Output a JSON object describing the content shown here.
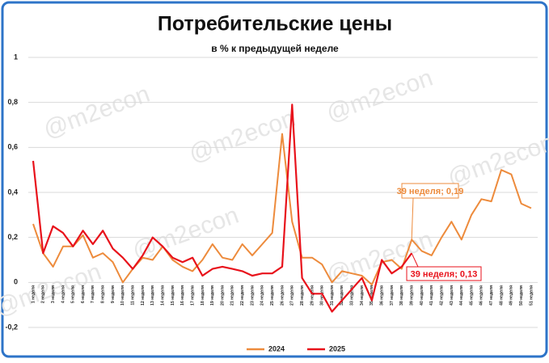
{
  "chart_data": {
    "type": "line",
    "title": "Потребительские цены",
    "subtitle": "в % к предыдущей неделе",
    "watermark": "@m2econ",
    "categories": [
      "1 неделя",
      "2 неделя",
      "3 неделя",
      "4 неделя",
      "5 неделя",
      "6 неделя",
      "7 неделя",
      "8 неделя",
      "9 неделя",
      "10 неделя",
      "11 неделя",
      "12 неделя",
      "13 неделя",
      "14 неделя",
      "15 неделя",
      "16 неделя",
      "17 неделя",
      "18 неделя",
      "19 неделя",
      "20 неделя",
      "21 неделя",
      "22 неделя",
      "23 неделя",
      "24 неделя",
      "25 неделя",
      "26 неделя",
      "27 неделя",
      "28 неделя",
      "29 неделя",
      "30 неделя",
      "31 неделя",
      "32 неделя",
      "33 неделя",
      "34 неделя",
      "35 неделя",
      "36 неделя",
      "37 неделя",
      "38 неделя",
      "39 неделя",
      "40 неделя",
      "41 неделя",
      "42 неделя",
      "43 неделя",
      "44 неделя",
      "45 неделя",
      "46 неделя",
      "47 неделя",
      "48 неделя",
      "49 неделя",
      "50 неделя",
      "51 неделя"
    ],
    "series": [
      {
        "name": "2024",
        "color": "#ed8b3c",
        "values": [
          0.26,
          0.13,
          0.07,
          0.16,
          0.16,
          0.21,
          0.11,
          0.13,
          0.09,
          0.0,
          0.06,
          0.11,
          0.1,
          0.16,
          0.1,
          0.07,
          0.05,
          0.1,
          0.17,
          0.11,
          0.1,
          0.17,
          0.12,
          0.17,
          0.22,
          0.66,
          0.27,
          0.11,
          0.11,
          0.08,
          0.0,
          0.05,
          0.04,
          0.03,
          -0.01,
          0.09,
          0.1,
          0.06,
          0.19,
          0.14,
          0.12,
          0.2,
          0.27,
          0.19,
          0.3,
          0.37,
          0.36,
          0.5,
          0.48,
          0.35,
          0.33
        ]
      },
      {
        "name": "2025",
        "color": "#e8121b",
        "values": [
          0.54,
          0.13,
          0.25,
          0.22,
          0.16,
          0.23,
          0.17,
          0.23,
          0.15,
          0.11,
          0.06,
          0.12,
          0.2,
          0.16,
          0.11,
          0.09,
          0.11,
          0.03,
          0.06,
          0.07,
          0.06,
          0.05,
          0.03,
          0.04,
          0.04,
          0.07,
          0.79,
          0.02,
          -0.05,
          -0.05,
          -0.13,
          -0.08,
          -0.03,
          0.02,
          -0.08,
          0.1,
          0.04,
          0.07,
          0.13,
          null,
          null,
          null,
          null,
          null,
          null,
          null,
          null,
          null,
          null,
          null,
          null
        ]
      }
    ],
    "annotations": [
      "39 неделя; 0,19",
      "39 неделя; 0,13"
    ],
    "ylim": [
      -0.2,
      1
    ],
    "yticks": [
      {
        "value": -0.2,
        "label": "-0,2"
      },
      0,
      {
        "value": 0.2,
        "label": "0,2"
      },
      {
        "value": 0.4,
        "label": "0,4"
      },
      {
        "value": 0.6,
        "label": "0,6"
      },
      {
        "value": 0.8,
        "label": "0,8"
      },
      1
    ],
    "grid": true,
    "legend": "bottom"
  }
}
